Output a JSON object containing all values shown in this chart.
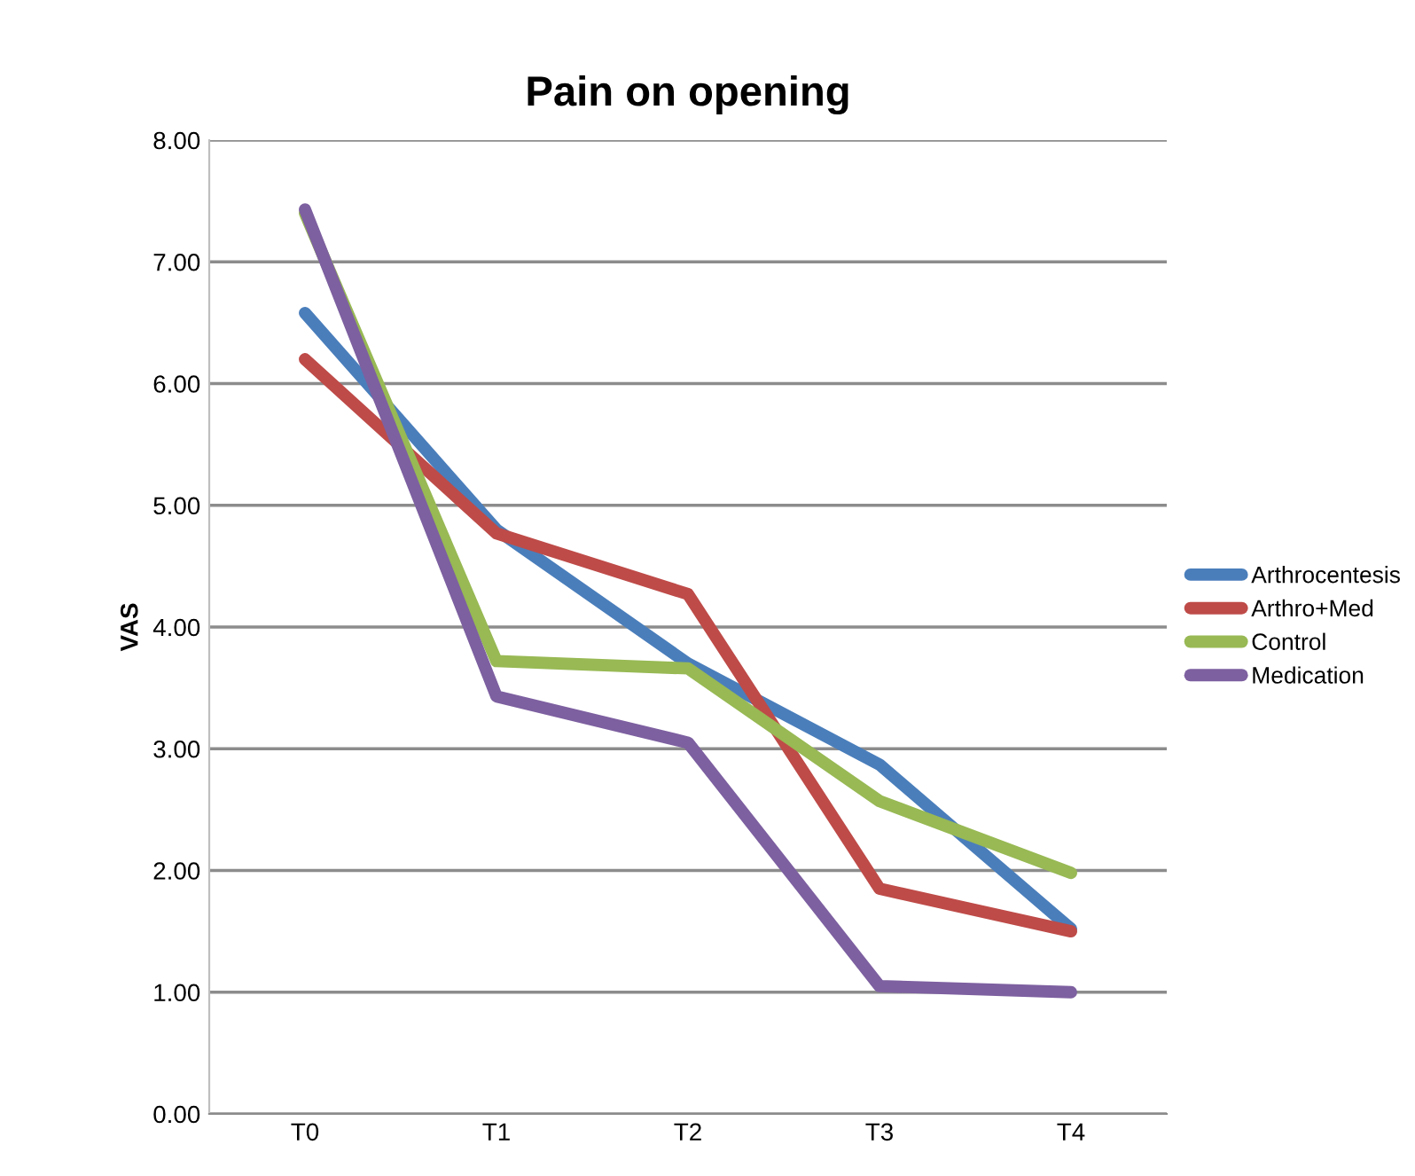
{
  "chart_data": {
    "type": "line",
    "title": "Pain on opening",
    "ylabel": "VAS",
    "categories": [
      "T0",
      "T1",
      "T2",
      "T3",
      "T4"
    ],
    "series": [
      {
        "name": "Arthrocentesis",
        "color": "#4a7ebb",
        "values": [
          6.58,
          4.8,
          3.7,
          2.87,
          1.52
        ]
      },
      {
        "name": "Arthro+Med",
        "color": "#be4b48",
        "values": [
          6.2,
          4.77,
          4.27,
          1.85,
          1.5
        ]
      },
      {
        "name": "Control",
        "color": "#98b954",
        "values": [
          7.4,
          3.72,
          3.66,
          2.57,
          1.98
        ]
      },
      {
        "name": "Medication",
        "color": "#7d60a0",
        "values": [
          7.43,
          3.43,
          3.05,
          1.05,
          1.0
        ]
      }
    ],
    "ylim": [
      0,
      8
    ],
    "yticks": [
      {
        "value": 0,
        "label": "0.00"
      },
      {
        "value": 1,
        "label": "1.00"
      },
      {
        "value": 2,
        "label": "2.00"
      },
      {
        "value": 3,
        "label": "3.00"
      },
      {
        "value": 4,
        "label": "4.00"
      },
      {
        "value": 5,
        "label": "5.00"
      },
      {
        "value": 6,
        "label": "6.00"
      },
      {
        "value": 7,
        "label": "7.00"
      },
      {
        "value": 8,
        "label": "8.00"
      }
    ],
    "grid": "y",
    "legend": "right",
    "marker": "none",
    "line_style": "solid"
  }
}
